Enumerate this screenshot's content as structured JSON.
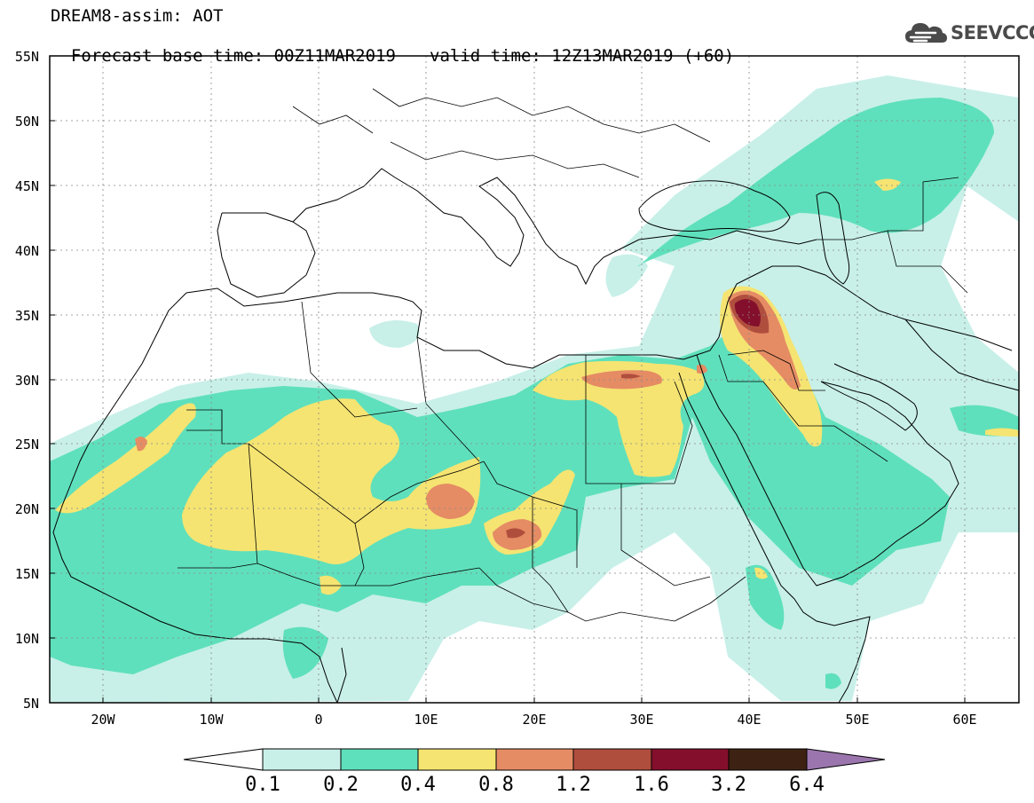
{
  "header": {
    "title_line1": "DREAM8-assim: AOT",
    "base_time": "Forecast base time: 00Z11MAR2019",
    "valid_time": "valid time: 12Z13MAR2019 (+60)",
    "logo_text": "SEEVCCC",
    "logo_icon": "cloud-icon"
  },
  "axes": {
    "lat_labels": [
      "55N",
      "50N",
      "45N",
      "40N",
      "35N",
      "30N",
      "25N",
      "20N",
      "15N",
      "10N",
      "5N"
    ],
    "lon_labels": [
      "20W",
      "10W",
      "0",
      "10E",
      "20E",
      "30E",
      "40E",
      "50E",
      "60E"
    ]
  },
  "colorbar": {
    "labels": [
      "0.1",
      "0.2",
      "0.4",
      "0.8",
      "1.2",
      "1.6",
      "3.2",
      "6.4"
    ],
    "colors": [
      "#ffffff",
      "#c8f0e8",
      "#5fe0bc",
      "#f5e472",
      "#e58c64",
      "#b04e3e",
      "#840f2c",
      "#3d2213",
      "#9b75ad"
    ]
  },
  "map": {
    "variable": "AOT",
    "region": "North Africa / Middle East",
    "lat_range": [
      5,
      55
    ],
    "lon_range": [
      -25,
      65
    ]
  }
}
